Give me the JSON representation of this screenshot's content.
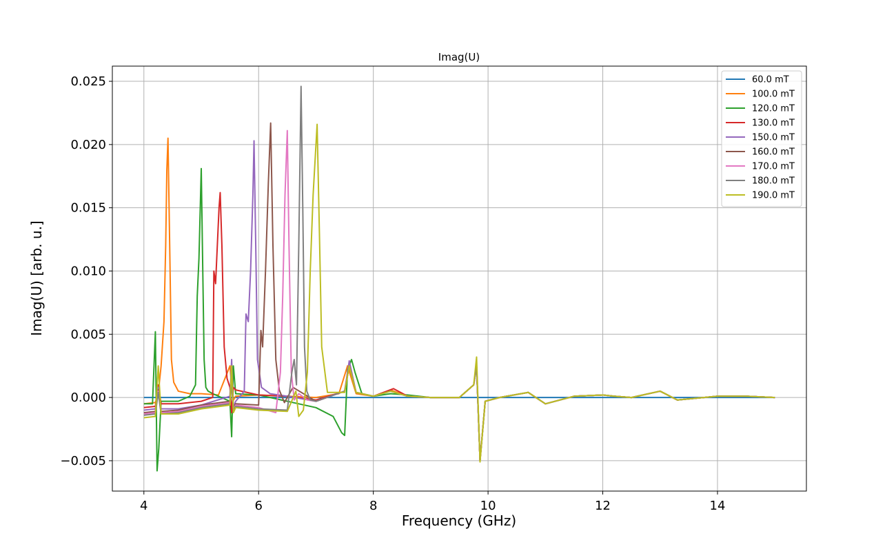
{
  "chart_data": {
    "type": "line",
    "title": "Imag(U)",
    "xlabel": "Frequency (GHz)",
    "ylabel": "Imag(U) [arb. u.]",
    "xlim": [
      3.45,
      15.55
    ],
    "ylim": [
      -0.0074,
      0.0262
    ],
    "xticks": [
      4,
      6,
      8,
      10,
      12,
      14
    ],
    "xtick_labels": [
      "4",
      "6",
      "8",
      "10",
      "12",
      "14"
    ],
    "yticks": [
      -0.005,
      0.0,
      0.005,
      0.01,
      0.015,
      0.02,
      0.025
    ],
    "ytick_labels": [
      "−0.005",
      "0.000",
      "0.005",
      "0.010",
      "0.015",
      "0.020",
      "0.025"
    ],
    "grid": true,
    "legend_position": "top-right",
    "series": [
      {
        "name": "60.0 mT",
        "color": "#1f77b4",
        "x": [
          4.0,
          15.0
        ],
        "y": [
          0.0,
          0.0
        ]
      },
      {
        "name": "100.0 mT",
        "color": "#ff7f0e",
        "x": [
          4.0,
          4.2,
          4.25,
          4.3,
          4.35,
          4.38,
          4.4,
          4.42,
          4.45,
          4.48,
          4.52,
          4.6,
          4.8,
          5.0,
          5.3,
          5.5,
          5.55,
          5.6,
          6.0,
          6.5,
          7.0,
          7.4,
          7.55,
          7.7,
          8.0,
          8.3,
          8.6,
          9.0,
          9.5,
          9.75,
          9.8,
          9.86,
          9.95,
          10.2,
          10.7,
          11.0,
          11.5,
          12.0,
          12.2,
          12.5,
          13.0,
          13.3,
          14.0,
          14.5,
          15.0
        ],
        "y": [
          -0.0005,
          -0.0004,
          0.0003,
          0.0025,
          0.006,
          0.012,
          0.018,
          0.0205,
          0.012,
          0.003,
          0.0012,
          0.0005,
          0.0003,
          0.0003,
          0.0002,
          0.0025,
          -0.0003,
          0.0001,
          0.0002,
          0.0001,
          0.0,
          0.0003,
          0.0025,
          0.0003,
          0.0001,
          0.0006,
          0.0001,
          0.0,
          0.0,
          0.001,
          0.0025,
          -0.005,
          -0.0003,
          0.0,
          0.0004,
          -0.0005,
          0.0001,
          0.0002,
          0.0001,
          0.0,
          0.0005,
          -0.0002,
          0.0001,
          0.0001,
          0.0
        ]
      },
      {
        "name": "120.0 mT",
        "color": "#2ca02c",
        "x": [
          4.0,
          4.15,
          4.2,
          4.23,
          4.26,
          4.3,
          4.4,
          4.6,
          4.8,
          4.9,
          4.93,
          4.96,
          5.0,
          5.02,
          5.05,
          5.08,
          5.12,
          5.2,
          5.5,
          5.53,
          5.56,
          5.6,
          6.0,
          6.5,
          6.7,
          7.0,
          7.3,
          7.45,
          7.5,
          7.55,
          7.62,
          7.68,
          7.8,
          8.0,
          8.3,
          8.6,
          9.0,
          9.5,
          9.75,
          9.8,
          9.86,
          9.95,
          10.2,
          10.7,
          11.0,
          11.5,
          12.0,
          12.2,
          12.5,
          13.0,
          13.3,
          14.0,
          14.5,
          15.0
        ],
        "y": [
          -0.0005,
          -0.0005,
          0.0052,
          -0.0058,
          -0.004,
          -0.0003,
          -0.0003,
          -0.0003,
          0.0001,
          0.001,
          0.008,
          0.011,
          0.0181,
          0.012,
          0.003,
          0.0008,
          0.0005,
          0.0003,
          -0.0003,
          -0.0031,
          0.0025,
          0.0003,
          0.0002,
          -0.0003,
          -0.0005,
          -0.0008,
          -0.0015,
          -0.0028,
          -0.003,
          0.0022,
          0.003,
          0.002,
          0.0003,
          0.0001,
          0.0003,
          0.0002,
          0.0,
          0.0,
          0.001,
          0.0025,
          -0.005,
          -0.0003,
          0.0,
          0.0004,
          -0.0005,
          0.0001,
          0.0002,
          0.0001,
          0.0,
          0.0005,
          -0.0002,
          0.0001,
          0.0001,
          0.0
        ]
      },
      {
        "name": "130.0 mT",
        "color": "#d62728",
        "x": [
          4.0,
          4.2,
          4.25,
          4.3,
          4.6,
          5.0,
          5.2,
          5.22,
          5.25,
          5.28,
          5.31,
          5.33,
          5.36,
          5.4,
          5.45,
          5.5,
          5.53,
          5.56,
          5.6,
          6.0,
          6.5,
          7.0,
          7.5,
          7.58,
          7.7,
          8.0,
          8.35,
          8.6,
          9.0,
          9.5,
          9.75,
          9.8,
          9.86,
          9.95,
          10.2,
          10.7,
          11.0,
          11.5,
          12.0,
          12.2,
          12.5,
          13.0,
          13.3,
          14.0,
          14.5,
          15.0
        ],
        "y": [
          -0.0008,
          -0.0007,
          0.001,
          -0.0005,
          -0.0005,
          -0.0003,
          0.0,
          0.01,
          0.009,
          0.012,
          0.015,
          0.0162,
          0.012,
          0.004,
          0.0015,
          0.0008,
          -0.0012,
          0.0008,
          0.0006,
          0.0002,
          0.0001,
          -0.0002,
          0.0005,
          0.0025,
          0.0004,
          0.0001,
          0.0007,
          0.0001,
          0.0,
          0.0,
          0.001,
          0.0025,
          -0.005,
          -0.0003,
          0.0,
          0.0004,
          -0.0005,
          0.0001,
          0.0002,
          0.0001,
          0.0,
          0.0005,
          -0.0002,
          0.0001,
          0.0001,
          0.0
        ]
      },
      {
        "name": "150.0 mT",
        "color": "#9467bd",
        "x": [
          4.0,
          4.2,
          4.25,
          4.3,
          4.6,
          5.0,
          5.5,
          5.53,
          5.56,
          5.6,
          5.75,
          5.78,
          5.82,
          5.86,
          5.9,
          5.92,
          5.95,
          5.98,
          6.05,
          6.2,
          6.5,
          7.0,
          7.5,
          7.58,
          7.7,
          8.0,
          8.3,
          8.6,
          9.0,
          9.5,
          9.75,
          9.8,
          9.86,
          9.95,
          10.2,
          10.7,
          11.0,
          11.5,
          12.0,
          12.2,
          12.5,
          13.0,
          13.3,
          14.0,
          14.5,
          15.0
        ],
        "y": [
          -0.001,
          -0.0009,
          0.0008,
          -0.0009,
          -0.0009,
          -0.0006,
          0.0001,
          0.003,
          -0.0008,
          -0.0003,
          0.0005,
          0.0066,
          0.006,
          0.01,
          0.016,
          0.0203,
          0.012,
          0.003,
          0.0008,
          0.0003,
          0.0001,
          -0.0003,
          0.0005,
          0.0029,
          0.0004,
          0.0001,
          0.0005,
          0.0001,
          0.0,
          0.0,
          0.001,
          0.0025,
          -0.005,
          -0.0003,
          0.0,
          0.0004,
          -0.0005,
          0.0001,
          0.0002,
          0.0001,
          0.0,
          0.0005,
          -0.0002,
          0.0001,
          0.0001,
          0.0
        ]
      },
      {
        "name": "160.0 mT",
        "color": "#8c564b",
        "x": [
          4.0,
          4.2,
          4.25,
          4.3,
          4.6,
          5.0,
          5.5,
          5.53,
          5.56,
          5.6,
          6.0,
          6.04,
          6.07,
          6.12,
          6.17,
          6.21,
          6.25,
          6.3,
          6.36,
          6.45,
          6.6,
          7.0,
          7.5,
          7.58,
          7.7,
          8.0,
          8.3,
          8.6,
          9.0,
          9.5,
          9.75,
          9.8,
          9.86,
          9.95,
          10.2,
          10.7,
          11.0,
          11.5,
          12.0,
          12.2,
          12.5,
          13.0,
          13.3,
          14.0,
          14.5,
          15.0
        ],
        "y": [
          -0.0012,
          -0.0011,
          0.0006,
          -0.0011,
          -0.001,
          -0.0006,
          -0.0003,
          0.002,
          -0.0009,
          -0.0005,
          -0.0006,
          0.0053,
          0.004,
          0.01,
          0.017,
          0.0217,
          0.012,
          0.003,
          0.0006,
          -0.0004,
          0.0008,
          -0.0003,
          0.0005,
          0.0025,
          0.0004,
          0.0001,
          0.0005,
          0.0001,
          0.0,
          0.0,
          0.001,
          0.0025,
          -0.005,
          -0.0003,
          0.0,
          0.0004,
          -0.0005,
          0.0001,
          0.0002,
          0.0001,
          0.0,
          0.0005,
          -0.0002,
          0.0001,
          0.0001,
          0.0
        ]
      },
      {
        "name": "170.0 mT",
        "color": "#e377c2",
        "x": [
          4.0,
          4.2,
          4.25,
          4.3,
          4.6,
          5.0,
          5.5,
          5.53,
          5.56,
          5.6,
          6.0,
          6.3,
          6.38,
          6.42,
          6.46,
          6.5,
          6.53,
          6.57,
          6.62,
          6.7,
          6.85,
          7.0,
          7.5,
          7.58,
          7.7,
          8.0,
          8.3,
          8.6,
          9.0,
          9.5,
          9.75,
          9.8,
          9.86,
          9.95,
          10.2,
          10.7,
          11.0,
          11.5,
          12.0,
          12.2,
          12.5,
          13.0,
          13.3,
          14.0,
          14.5,
          15.0
        ],
        "y": [
          -0.0013,
          -0.0012,
          0.0005,
          -0.0012,
          -0.0011,
          -0.0007,
          -0.0004,
          0.0015,
          -0.001,
          -0.0006,
          -0.0008,
          -0.0012,
          0.002,
          0.008,
          0.016,
          0.0211,
          0.012,
          0.002,
          -0.0002,
          0.0003,
          -0.0002,
          -0.0003,
          0.0005,
          0.0025,
          0.0004,
          0.0001,
          0.0005,
          0.0001,
          0.0,
          0.0,
          0.001,
          0.0025,
          -0.005,
          -0.0003,
          0.0,
          0.0004,
          -0.0005,
          0.0001,
          0.0002,
          0.0001,
          0.0,
          0.0005,
          -0.0002,
          0.0001,
          0.0001,
          0.0
        ]
      },
      {
        "name": "180.0 mT",
        "color": "#7f7f7f",
        "x": [
          4.0,
          4.2,
          4.25,
          4.3,
          4.6,
          5.0,
          5.5,
          5.53,
          5.56,
          5.6,
          6.0,
          6.5,
          6.58,
          6.62,
          6.66,
          6.7,
          6.74,
          6.77,
          6.8,
          6.84,
          6.9,
          7.0,
          7.5,
          7.58,
          7.7,
          8.0,
          8.3,
          8.6,
          9.0,
          9.5,
          9.75,
          9.8,
          9.86,
          9.95,
          10.2,
          10.7,
          11.0,
          11.5,
          12.0,
          12.2,
          12.5,
          13.0,
          13.3,
          14.0,
          14.5,
          15.0
        ],
        "y": [
          -0.0014,
          -0.0013,
          0.0004,
          -0.0013,
          -0.0012,
          -0.0008,
          -0.0005,
          0.0012,
          -0.001,
          -0.0007,
          -0.0009,
          -0.001,
          0.002,
          0.003,
          0.001,
          0.012,
          0.0246,
          0.015,
          0.004,
          0.0005,
          -0.0002,
          -0.0003,
          0.0005,
          0.0025,
          0.0004,
          0.0001,
          0.0005,
          0.0001,
          0.0,
          0.0,
          0.001,
          0.0025,
          -0.005,
          -0.0003,
          0.0,
          0.0004,
          -0.0005,
          0.0001,
          0.0002,
          0.0001,
          0.0,
          0.0005,
          -0.0002,
          0.0001,
          0.0001,
          0.0
        ]
      },
      {
        "name": "190.0 mT",
        "color": "#bcbd22",
        "x": [
          4.0,
          4.2,
          4.25,
          4.3,
          4.6,
          5.0,
          5.5,
          5.53,
          5.56,
          5.6,
          6.0,
          6.5,
          6.65,
          6.7,
          6.78,
          6.85,
          6.9,
          6.95,
          7.02,
          7.06,
          7.1,
          7.2,
          7.5,
          7.58,
          7.7,
          8.0,
          8.3,
          8.6,
          9.0,
          9.5,
          9.75,
          9.8,
          9.86,
          9.95,
          10.2,
          10.7,
          11.0,
          11.5,
          12.0,
          12.2,
          12.5,
          13.0,
          13.3,
          14.0,
          14.5,
          15.0
        ],
        "y": [
          -0.0016,
          -0.0015,
          0.0025,
          -0.0013,
          -0.0013,
          -0.0009,
          -0.0006,
          0.0025,
          -0.0012,
          -0.0008,
          -0.001,
          -0.0011,
          0.0005,
          -0.0015,
          -0.001,
          0.002,
          0.01,
          0.016,
          0.0216,
          0.013,
          0.004,
          0.0004,
          0.0004,
          0.0025,
          0.0004,
          0.0001,
          0.0005,
          0.0001,
          0.0,
          0.0,
          0.001,
          0.0032,
          -0.0051,
          -0.0003,
          0.0,
          0.0004,
          -0.0005,
          0.0001,
          0.0002,
          0.0001,
          0.0,
          0.0005,
          -0.0002,
          0.0001,
          0.0001,
          0.0
        ]
      }
    ]
  }
}
